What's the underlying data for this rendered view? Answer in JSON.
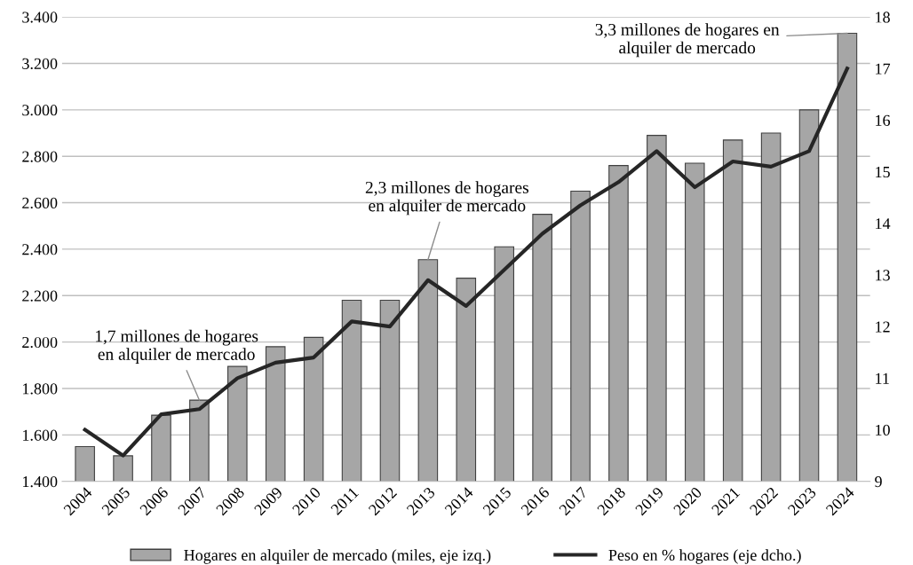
{
  "chart_data": {
    "type": "bar",
    "categories": [
      "2004",
      "2005",
      "2006",
      "2007",
      "2008",
      "2009",
      "2010",
      "2011",
      "2012",
      "2013",
      "2014",
      "2015",
      "2016",
      "2017",
      "2018",
      "2019",
      "2020",
      "2021",
      "2022",
      "2023",
      "2024"
    ],
    "series": [
      {
        "name": "Hogares en alquiler de mercado (miles, eje izq.)",
        "color": "#a6a6a6",
        "values": [
          1550,
          1510,
          1685,
          1750,
          1895,
          1980,
          2020,
          2180,
          2180,
          2355,
          2275,
          2410,
          2550,
          2650,
          2760,
          2890,
          2770,
          2870,
          2900,
          3000,
          3330
        ]
      },
      {
        "name": "Peso en % hogares (eje dcho.)",
        "type": "line",
        "axis": "y2",
        "color": "#262626",
        "values": [
          10.0,
          9.5,
          10.3,
          10.4,
          11.0,
          11.3,
          11.4,
          12.1,
          12.0,
          12.9,
          12.4,
          13.1,
          13.8,
          14.35,
          14.8,
          15.4,
          14.7,
          15.2,
          15.1,
          15.4,
          17.0
        ]
      }
    ],
    "ylim": [
      1400,
      3400
    ],
    "yticks": [
      {
        "value": 1400,
        "label": "1.400"
      },
      {
        "value": 1600,
        "label": "1.600"
      },
      {
        "value": 1800,
        "label": "1.800"
      },
      {
        "value": 2000,
        "label": "2.000"
      },
      {
        "value": 2200,
        "label": "2.200"
      },
      {
        "value": 2400,
        "label": "2.400"
      },
      {
        "value": 2600,
        "label": "2.600"
      },
      {
        "value": 2800,
        "label": "2.800"
      },
      {
        "value": 3000,
        "label": "3.000"
      },
      {
        "value": 3200,
        "label": "3.200"
      },
      {
        "value": 3400,
        "label": "3.400"
      }
    ],
    "y2lim": [
      9,
      18
    ],
    "y2ticks": [
      9,
      10,
      11,
      12,
      13,
      14,
      15,
      16,
      17,
      18
    ],
    "grid": "y",
    "legend": "bottom",
    "annotations": [
      {
        "text": "1,7 millones de hogares\nen alquiler de mercado",
        "x": "2007",
        "y": 1750
      },
      {
        "text": "2,3 millones de hogares\nen alquiler de mercado",
        "x": "2013",
        "y": 2355
      },
      {
        "text": "3,3 millones de hogares en\nalquiler de mercado",
        "x": "2024",
        "y": 3330
      }
    ]
  }
}
